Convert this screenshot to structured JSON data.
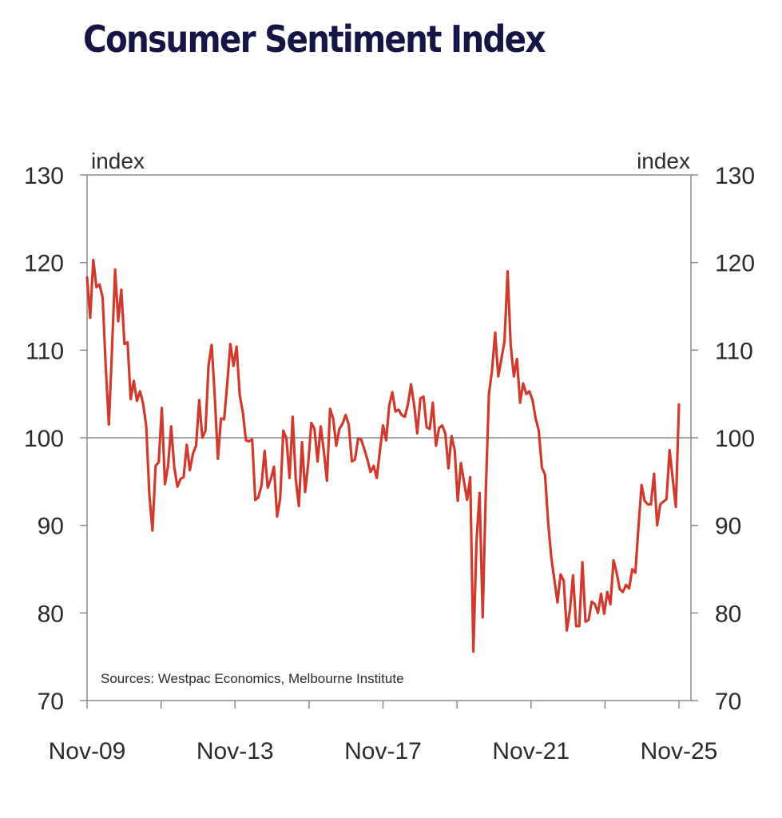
{
  "chart_data": {
    "type": "line",
    "title": "Consumer Sentiment Index",
    "left_unit_label": "index",
    "right_unit_label": "index",
    "source_note": "Sources: Westpac Economics, Melbourne Institute",
    "ylim": [
      70,
      130
    ],
    "y_ticks": [
      70,
      80,
      90,
      100,
      110,
      120,
      130
    ],
    "y_tick_labels": [
      "70",
      "80",
      "90",
      "100",
      "110",
      "120",
      "130"
    ],
    "x_tick_labels": [
      "Nov-09",
      "Nov-13",
      "Nov-17",
      "Nov-21",
      "Nov-25"
    ],
    "reference_line": 100,
    "grid": false,
    "series_color": "#d0392b",
    "series": [
      {
        "x_start": "Nov-09",
        "x_end": "Nov-25",
        "frequency": "monthly",
        "values": [
          118.3,
          113.7,
          120.3,
          117.2,
          117.5,
          116.0,
          108.0,
          101.5,
          110.0,
          119.2,
          113.3,
          116.9,
          110.7,
          110.9,
          104.4,
          106.5,
          104.2,
          105.3,
          103.9,
          101.3,
          93.5,
          89.4,
          96.8,
          97.2,
          103.4,
          94.7,
          96.8,
          101.3,
          96.6,
          94.4,
          95.3,
          95.5,
          99.2,
          96.3,
          98.2,
          99.1,
          104.3,
          100.0,
          100.8,
          108.3,
          110.6,
          104.7,
          97.6,
          102.2,
          102.1,
          106.2,
          110.7,
          108.2,
          110.4,
          104.9,
          102.9,
          99.7,
          99.6,
          99.8,
          92.9,
          93.2,
          94.6,
          98.5,
          94.3,
          95.3,
          96.7,
          91.0,
          93.1,
          100.8,
          99.9,
          95.4,
          102.4,
          95.2,
          92.2,
          99.5,
          93.8,
          97.1,
          101.7,
          101.0,
          97.3,
          101.3,
          98.5,
          95.1,
          103.3,
          102.2,
          99.1,
          101.0,
          101.6,
          102.6,
          101.5,
          97.3,
          97.5,
          99.9,
          99.8,
          98.7,
          97.5,
          96.1,
          96.8,
          95.4,
          98.5,
          101.4,
          99.7,
          103.7,
          105.2,
          103.0,
          103.2,
          102.6,
          102.4,
          103.8,
          106.1,
          103.7,
          100.5,
          104.5,
          104.7,
          101.2,
          101.0,
          104.0,
          99.1,
          101.1,
          101.4,
          100.5,
          96.5,
          100.2,
          98.6,
          92.8,
          97.1,
          95.0,
          92.9,
          95.5,
          75.6,
          88.1,
          93.7,
          79.5,
          93.9,
          105.0,
          107.7,
          112.0,
          107.0,
          109.0,
          111.0,
          119.0,
          110.5,
          107.0,
          109.0,
          104.0,
          106.2,
          105.0,
          105.3,
          104.3,
          102.2,
          100.8,
          96.6,
          95.8,
          90.4,
          86.4,
          83.8,
          81.2,
          84.4,
          83.7,
          78.0,
          80.3,
          84.3,
          78.5,
          78.5,
          85.8,
          79.0,
          79.2,
          81.3,
          81.0,
          80.0,
          82.2,
          79.9,
          82.4,
          81.0,
          86.0,
          84.6,
          82.7,
          82.4,
          83.2,
          82.8,
          85.0,
          84.6,
          89.8,
          94.6,
          92.8,
          92.4,
          92.4,
          95.9,
          90.0,
          92.4,
          92.7,
          93.0,
          98.6,
          95.3,
          92.1,
          103.8
        ]
      }
    ]
  }
}
